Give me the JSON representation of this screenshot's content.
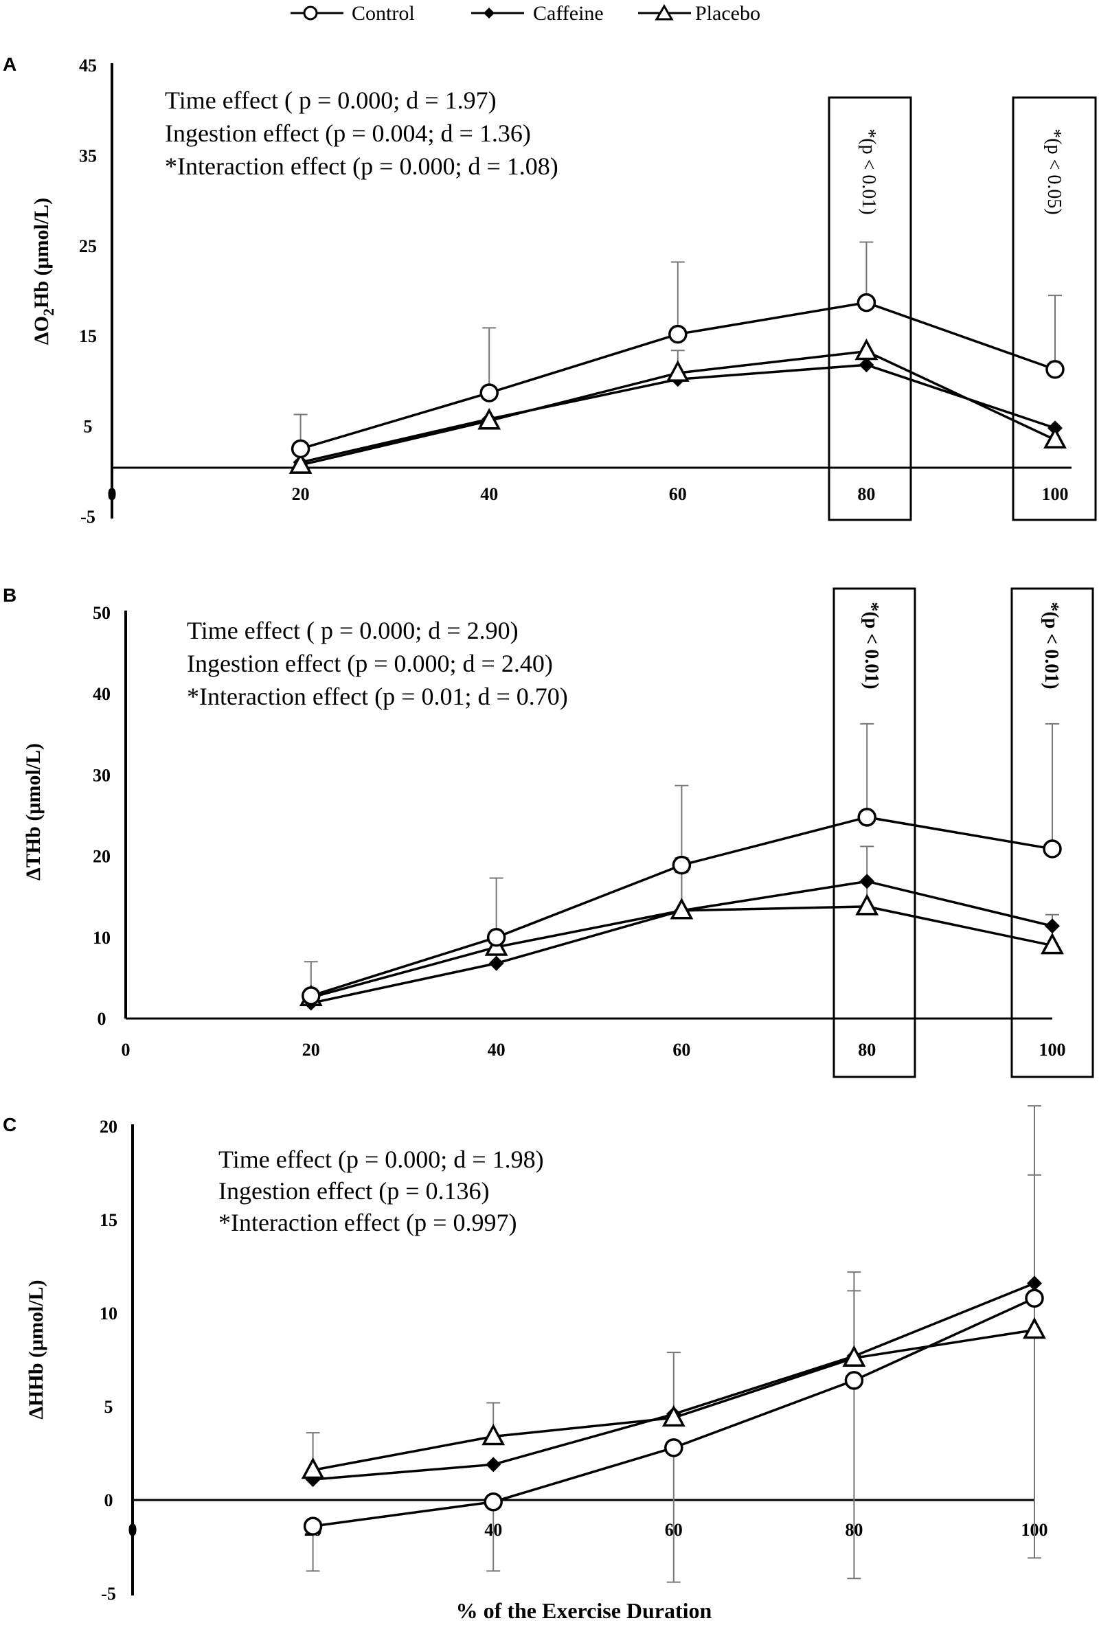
{
  "legend": [
    {
      "name": "Control",
      "marker": "circle"
    },
    {
      "name": "Caffeine",
      "marker": "diamond"
    },
    {
      "name": "Placebo",
      "marker": "triangle"
    }
  ],
  "xlabel": "% of the Exercise Duration",
  "chart_data": [
    {
      "type": "line",
      "panel": "A",
      "ylabel": "ΔO2Hb (μmol/L)",
      "ylabel_parts": [
        "ΔO",
        "2",
        "Hb (μmol/L)"
      ],
      "ylim": [
        -5,
        45
      ],
      "yticks": [
        "-5",
        "5",
        "15",
        "25",
        "35",
        "45"
      ],
      "xticks": [
        "0",
        "20",
        "40",
        "60",
        "80",
        "100"
      ],
      "stats": [
        "Time effect ( p = 0.000;  d = 1.97)",
        "Ingestion effect (p = 0.004;  d = 1.36)",
        "*Interaction effect (p = 0.000;  d = 1.08)"
      ],
      "significance": [
        {
          "x": 80,
          "label": "*(p < 0.01)"
        },
        {
          "x": 100,
          "label": "*(p < 0.05)"
        }
      ],
      "x": [
        20,
        40,
        60,
        80,
        100
      ],
      "series": [
        {
          "name": "Control",
          "values": [
            2.5,
            8.7,
            15.2,
            18.7,
            11.3
          ],
          "err": [
            3.8,
            7.2,
            8.0,
            6.7,
            8.2
          ]
        },
        {
          "name": "Caffeine",
          "values": [
            1.0,
            5.8,
            10.2,
            11.8,
            4.8
          ],
          "err": [
            0,
            0,
            3.2,
            0,
            0
          ]
        },
        {
          "name": "Placebo",
          "values": [
            0.7,
            5.6,
            10.9,
            13.3,
            3.5
          ],
          "err": [
            0,
            0,
            0,
            0,
            0
          ]
        }
      ]
    },
    {
      "type": "line",
      "panel": "B",
      "ylabel": "ΔTHb (μmol/L)",
      "ylim": [
        0,
        50
      ],
      "yticks": [
        "0",
        "10",
        "20",
        "30",
        "40",
        "50"
      ],
      "xticks": [
        "0",
        "20",
        "40",
        "60",
        "80",
        "100"
      ],
      "stats": [
        "Time effect ( p = 0.000;  d = 2.90)",
        "Ingestion effect (p = 0.000;  d = 2.40)",
        "*Interaction effect (p = 0.01;  d = 0.70)"
      ],
      "significance": [
        {
          "x": 80,
          "label": "*(p < 0.01)"
        },
        {
          "x": 100,
          "label": "*(p < 0.01)"
        }
      ],
      "x": [
        20,
        40,
        60,
        80,
        100
      ],
      "series": [
        {
          "name": "Control",
          "values": [
            2.8,
            10.0,
            18.9,
            24.8,
            20.9
          ],
          "err": [
            4.2,
            7.3,
            9.8,
            11.5,
            15.4
          ]
        },
        {
          "name": "Caffeine",
          "values": [
            1.9,
            6.8,
            13.3,
            16.9,
            11.4
          ],
          "err": [
            0,
            2.8,
            4.7,
            0,
            0
          ]
        },
        {
          "name": "Placebo",
          "values": [
            2.6,
            8.8,
            13.3,
            13.8,
            9.0
          ],
          "err": [
            0,
            0,
            6.5,
            7.4,
            3.8
          ]
        }
      ]
    },
    {
      "type": "line",
      "panel": "C",
      "ylabel": "ΔHHb (μmol/L)",
      "ylim": [
        -5,
        20
      ],
      "yticks": [
        "-5",
        "0",
        "5",
        "10",
        "15",
        "20"
      ],
      "xticks": [
        "0",
        "20",
        "40",
        "60",
        "80",
        "100"
      ],
      "stats": [
        "Time effect (p = 0.000;  d = 1.98)",
        "Ingestion effect (p = 0.136)",
        "*Interaction effect (p = 0.997)"
      ],
      "significance": [],
      "x": [
        20,
        40,
        60,
        80,
        100
      ],
      "series": [
        {
          "name": "Control",
          "values": [
            -1.4,
            -0.1,
            2.8,
            6.4,
            10.8
          ],
          "err": [
            2.4,
            3.7,
            7.2,
            10.6,
            13.9
          ]
        },
        {
          "name": "Caffeine",
          "values": [
            1.1,
            1.9,
            4.6,
            7.7,
            11.6
          ],
          "err": [
            0,
            0,
            0,
            4.5,
            9.5
          ]
        },
        {
          "name": "Placebo",
          "values": [
            1.6,
            3.4,
            4.4,
            7.6,
            9.1
          ],
          "err": [
            2.0,
            1.8,
            3.5,
            3.6,
            8.3
          ]
        }
      ]
    }
  ]
}
